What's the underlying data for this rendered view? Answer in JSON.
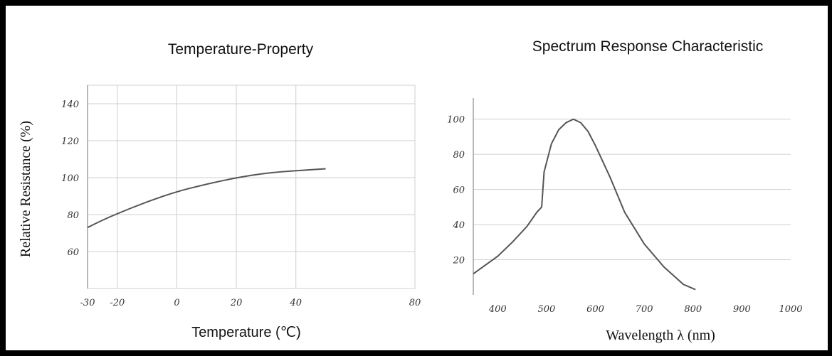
{
  "chart_data": [
    {
      "type": "line",
      "title": "Temperature-Property",
      "xlabel": "Temperature (℃)",
      "ylabel": "Relative Resistance (%)",
      "xlim": [
        -30,
        80
      ],
      "ylim": [
        40,
        150
      ],
      "xticks": [
        -30,
        -20,
        0,
        20,
        40,
        80
      ],
      "xtick_labels": [
        "-30",
        "-20",
        "0",
        "20",
        "40",
        "80"
      ],
      "yticks": [
        60,
        80,
        100,
        120,
        140
      ],
      "grid": true,
      "x": [
        -30,
        -25,
        -20,
        -10,
        0,
        10,
        20,
        30,
        40,
        50
      ],
      "y": [
        73,
        77,
        80.5,
        87,
        92.5,
        96.5,
        100,
        102.5,
        103.8,
        104.8
      ]
    },
    {
      "type": "line",
      "title": "Spectrum Response Characteristic",
      "xlabel": "Wavelength λ (nm)",
      "xlim": [
        350,
        1000
      ],
      "ylim": [
        0,
        112
      ],
      "xticks": [
        400,
        500,
        600,
        700,
        800,
        900,
        1000
      ],
      "yticks": [
        20,
        40,
        60,
        80,
        100
      ],
      "grid": true,
      "x": [
        350,
        400,
        430,
        460,
        480,
        490,
        495,
        510,
        525,
        540,
        555,
        570,
        585,
        600,
        630,
        660,
        700,
        740,
        780,
        805
      ],
      "y": [
        12,
        22,
        30,
        39,
        47,
        50,
        70,
        86,
        94,
        98,
        100,
        98,
        93,
        85,
        67,
        47,
        29,
        16,
        6,
        3
      ]
    }
  ]
}
